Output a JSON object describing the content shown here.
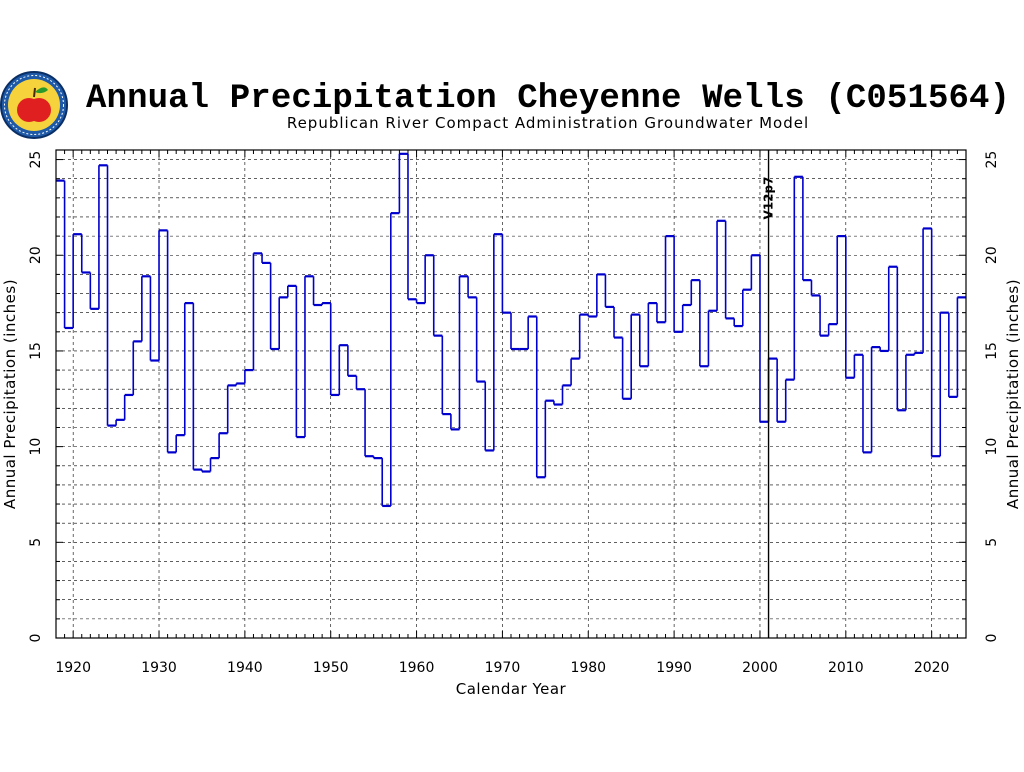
{
  "chart_data": {
    "type": "line",
    "step": true,
    "title": "Annual Precipitation Cheyenne Wells (C051564)",
    "subtitle": "Republican River Compact Administration Groundwater Model",
    "xlabel": "Calendar Year",
    "ylabel": "Annual Precipitation (inches)",
    "xlim": [
      1918,
      2024
    ],
    "ylim": [
      0,
      25.5
    ],
    "x_ticks": [
      "1920",
      "1930",
      "1940",
      "1950",
      "1960",
      "1970",
      "1980",
      "1990",
      "2000",
      "2010",
      "2020"
    ],
    "y_ticks": [
      "0",
      "5",
      "10",
      "15",
      "20",
      "25"
    ],
    "grid": true,
    "annotation": {
      "label": "V12p7",
      "x": 2001
    },
    "series": [
      {
        "color": "#0000cc",
        "x": [
          1918,
          1919,
          1920,
          1921,
          1922,
          1923,
          1924,
          1925,
          1926,
          1927,
          1928,
          1929,
          1930,
          1931,
          1932,
          1933,
          1934,
          1935,
          1936,
          1937,
          1938,
          1939,
          1940,
          1941,
          1942,
          1943,
          1944,
          1945,
          1946,
          1947,
          1948,
          1949,
          1950,
          1951,
          1952,
          1953,
          1954,
          1955,
          1956,
          1957,
          1958,
          1959,
          1960,
          1961,
          1962,
          1963,
          1964,
          1965,
          1966,
          1967,
          1968,
          1969,
          1970,
          1971,
          1972,
          1973,
          1974,
          1975,
          1976,
          1977,
          1978,
          1979,
          1980,
          1981,
          1982,
          1983,
          1984,
          1985,
          1986,
          1987,
          1988,
          1989,
          1990,
          1991,
          1992,
          1993,
          1994,
          1995,
          1996,
          1997,
          1998,
          1999,
          2000,
          2001,
          2002,
          2003,
          2004,
          2005,
          2006,
          2007,
          2008,
          2009,
          2010,
          2011,
          2012,
          2013,
          2014,
          2015,
          2016,
          2017,
          2018,
          2019,
          2020,
          2021,
          2022,
          2023
        ],
        "values": [
          23.9,
          16.2,
          21.1,
          19.1,
          17.2,
          24.7,
          11.1,
          11.4,
          12.7,
          15.5,
          18.9,
          14.5,
          21.3,
          9.7,
          10.6,
          17.5,
          8.8,
          8.7,
          9.4,
          10.7,
          13.2,
          13.3,
          14.0,
          20.1,
          19.6,
          15.1,
          17.8,
          18.4,
          10.5,
          18.9,
          17.4,
          17.5,
          12.7,
          15.3,
          13.7,
          13.0,
          9.5,
          9.4,
          6.9,
          22.2,
          25.3,
          17.7,
          17.5,
          20.0,
          15.8,
          11.7,
          10.9,
          18.9,
          17.8,
          13.4,
          9.8,
          21.1,
          17.0,
          15.1,
          15.1,
          16.8,
          8.4,
          12.4,
          12.2,
          13.2,
          14.6,
          16.9,
          16.8,
          19.0,
          17.3,
          15.7,
          12.5,
          16.9,
          14.2,
          17.5,
          16.5,
          21.0,
          16.0,
          17.4,
          18.7,
          14.2,
          17.1,
          21.8,
          16.7,
          16.3,
          18.2,
          20.0,
          11.3,
          14.6,
          11.3,
          13.5,
          24.1,
          18.7,
          17.9,
          15.8,
          16.4,
          21.0,
          13.6,
          14.8,
          9.7,
          15.2,
          15.0,
          19.4,
          11.9,
          14.8,
          14.9,
          21.4,
          9.5,
          17.0,
          12.6,
          17.8
        ]
      }
    ]
  }
}
